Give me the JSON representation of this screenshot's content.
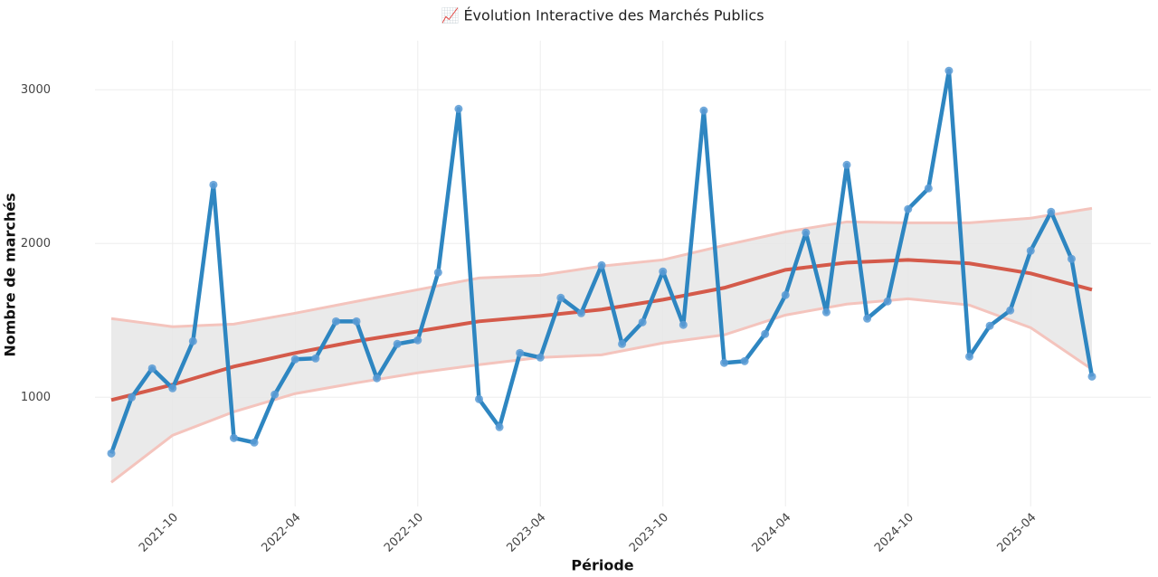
{
  "chart_data": {
    "type": "line",
    "title": "📈 Évolution Interactive des Marchés Publics",
    "x_label": "Période",
    "y_label": "Nombre de marchés",
    "x": [
      "2021-07",
      "2021-08",
      "2021-09",
      "2021-10",
      "2021-11",
      "2021-12",
      "2022-01",
      "2022-02",
      "2022-03",
      "2022-04",
      "2022-05",
      "2022-06",
      "2022-07",
      "2022-08",
      "2022-09",
      "2022-10",
      "2022-11",
      "2022-12",
      "2023-01",
      "2023-02",
      "2023-03",
      "2023-04",
      "2023-05",
      "2023-06",
      "2023-07",
      "2023-08",
      "2023-09",
      "2023-10",
      "2023-11",
      "2023-12",
      "2024-01",
      "2024-02",
      "2024-03",
      "2024-04",
      "2024-05",
      "2024-06",
      "2024-07",
      "2024-08",
      "2024-09",
      "2024-10",
      "2024-11",
      "2024-12",
      "2025-01",
      "2025-02",
      "2025-03",
      "2025-04",
      "2025-05",
      "2025-06",
      "2025-07"
    ],
    "series": [
      {
        "color": "#2e86c1",
        "marker_color": "#5b9bd5",
        "values": [
          635,
          1000,
          1188,
          1059,
          1365,
          2382,
          735,
          706,
          1018,
          1247,
          1253,
          1494,
          1494,
          1124,
          1347,
          1371,
          1812,
          2876,
          988,
          806,
          1288,
          1259,
          1647,
          1547,
          1859,
          1347,
          1488,
          1818,
          1471,
          2865,
          1224,
          1235,
          1412,
          1665,
          2071,
          1553,
          2512,
          1512,
          1624,
          2224,
          2359,
          3124,
          1265,
          1465,
          1565,
          1953,
          2206,
          1900,
          1135
        ]
      }
    ],
    "trend": {
      "color": "#d45a4a",
      "band_color": "#e6e6e6",
      "band_edge_color": "#f4c4bd",
      "x": [
        "2021-07",
        "2021-10",
        "2022-01",
        "2022-04",
        "2022-07",
        "2022-10",
        "2023-01",
        "2023-04",
        "2023-07",
        "2023-10",
        "2024-01",
        "2024-04",
        "2024-07",
        "2024-10",
        "2025-01",
        "2025-04",
        "2025-07"
      ],
      "values": [
        982,
        1082,
        1200,
        1288,
        1365,
        1429,
        1494,
        1529,
        1571,
        1635,
        1712,
        1829,
        1876,
        1894,
        1871,
        1806,
        1700
      ],
      "upper": [
        1512,
        1459,
        1476,
        1547,
        1624,
        1700,
        1776,
        1794,
        1853,
        1894,
        1988,
        2076,
        2141,
        2135,
        2135,
        2165,
        2229
      ],
      "lower": [
        447,
        753,
        906,
        1024,
        1094,
        1159,
        1212,
        1259,
        1276,
        1353,
        1406,
        1535,
        1606,
        1641,
        1600,
        1453,
        1182
      ]
    },
    "xlim": [
      "2021-07",
      "2025-07"
    ],
    "xticks": [
      "2021-10",
      "2022-04",
      "2022-10",
      "2023-04",
      "2023-10",
      "2024-04",
      "2024-10",
      "2025-04"
    ],
    "ylim": [
      290,
      3290
    ],
    "yticks": [
      1000,
      2000,
      3000
    ],
    "grid": true
  }
}
